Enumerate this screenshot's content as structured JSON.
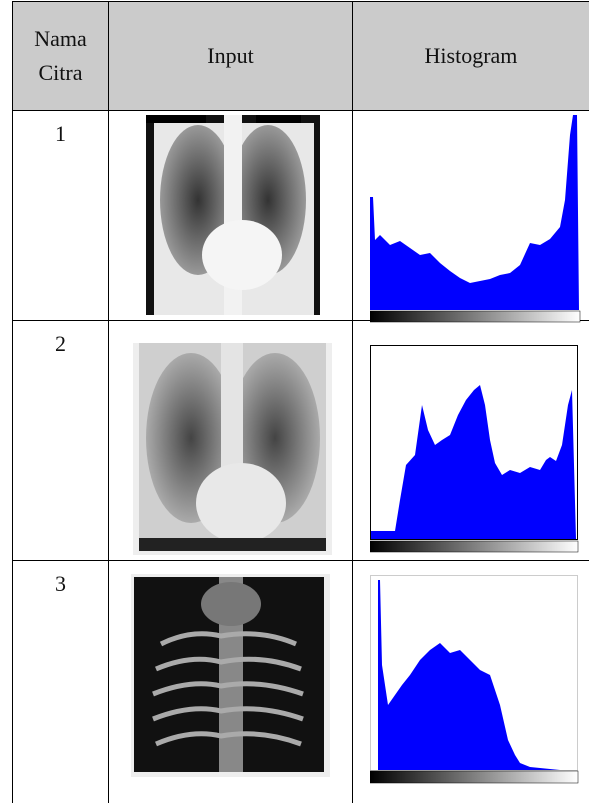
{
  "table": {
    "header": [
      "Nama Citra",
      "Input",
      "Histogram"
    ],
    "rows": [
      [
        "1"
      ],
      [
        "2"
      ],
      [
        "3"
      ]
    ]
  }
}
